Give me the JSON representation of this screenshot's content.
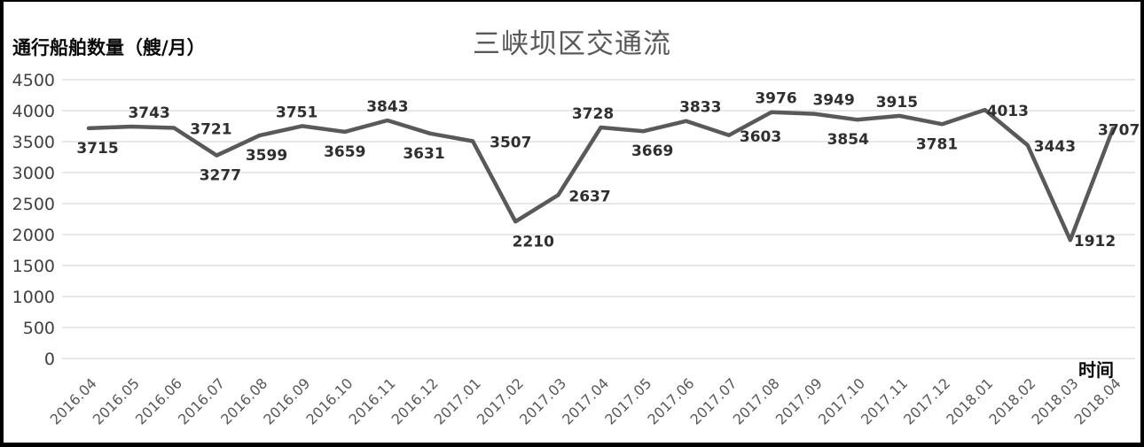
{
  "header": {
    "title": "三峡坝区交通流"
  },
  "axes": {
    "y_label": "通行船舶数量（艘/月）",
    "x_label": "时间"
  },
  "chart_data": {
    "type": "line",
    "title": "三峡坝区交通流",
    "xlabel": "时间",
    "ylabel": "通行船舶数量（艘/月）",
    "ylim": [
      0,
      4500
    ],
    "ytick_step": 500,
    "yticks": [
      0,
      500,
      1000,
      1500,
      2000,
      2500,
      3000,
      3500,
      4000,
      4500
    ],
    "grid": true,
    "legend": "none",
    "line_color": "#595959",
    "gridline_color": "#d9d9d9",
    "label_color": "#2f2f2f",
    "ytick_color": "#404040",
    "xtick_color": "#595959",
    "categories": [
      "2016.04",
      "2016.05",
      "2016.06",
      "2016.07",
      "2016.08",
      "2016.09",
      "2016.10",
      "2016.11",
      "2016.12",
      "2017.01",
      "2017.02",
      "2017.03",
      "2017.04",
      "2017.05",
      "2017.06",
      "2017.07",
      "2017.08",
      "2017.09",
      "2017.10",
      "2017.11",
      "2017.12",
      "2018.01",
      "2018.02",
      "2018.03",
      "2018.04"
    ],
    "values": [
      3715,
      3743,
      3721,
      3277,
      3599,
      3751,
      3659,
      3843,
      3631,
      3507,
      2210,
      2637,
      3728,
      3669,
      3833,
      3603,
      3976,
      3949,
      3854,
      3915,
      3781,
      4013,
      3443,
      1912,
      3707
    ],
    "data_labels": [
      {
        "pos": "below",
        "dx": 10
      },
      {
        "pos": "above",
        "dx": 20
      },
      {
        "pos": "right",
        "dx": 6
      },
      {
        "pos": "below",
        "dx": 4
      },
      {
        "pos": "below",
        "dx": 8
      },
      {
        "pos": "above",
        "dx": -6
      },
      {
        "pos": "below",
        "dx": 0
      },
      {
        "pos": "above",
        "dx": 0
      },
      {
        "pos": "below",
        "dx": -7
      },
      {
        "pos": "right",
        "dx": 7
      },
      {
        "pos": "below",
        "dx": 20
      },
      {
        "pos": "right",
        "dx": 0
      },
      {
        "pos": "above",
        "dx": -9
      },
      {
        "pos": "below",
        "dx": 10
      },
      {
        "pos": "above",
        "dx": 16
      },
      {
        "pos": "right",
        "dx": 0
      },
      {
        "pos": "above",
        "dx": 5
      },
      {
        "pos": "above",
        "dx": 22
      },
      {
        "pos": "below",
        "dx": -10
      },
      {
        "pos": "above",
        "dx": -3
      },
      {
        "pos": "below",
        "dx": -6
      },
      {
        "pos": "right",
        "dx": -10
      },
      {
        "pos": "right",
        "dx": -5
      },
      {
        "pos": "right",
        "dx": -8
      },
      {
        "pos": "right",
        "dx": -29
      }
    ]
  }
}
